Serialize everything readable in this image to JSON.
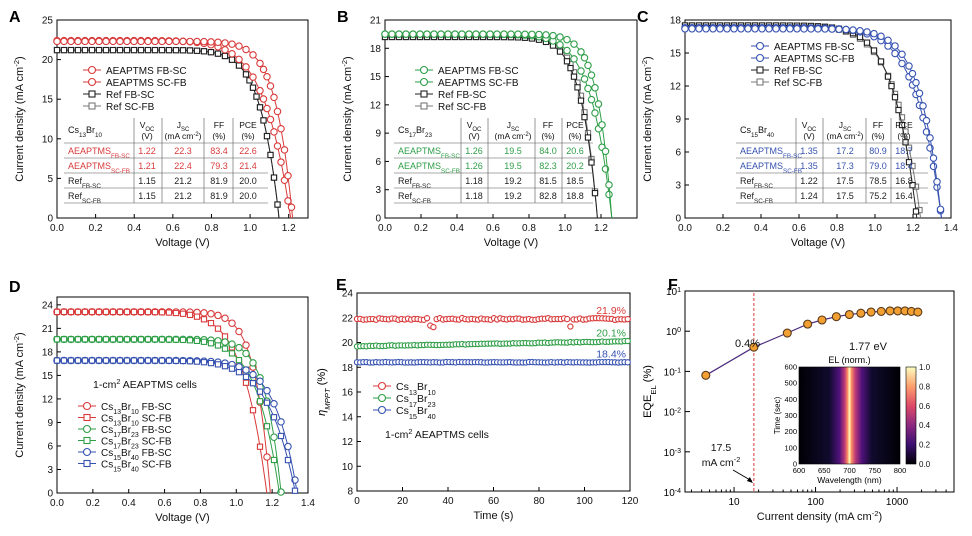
{
  "colors": {
    "red": "#d93a3a",
    "green": "#2e9e47",
    "blue": "#3652b0",
    "black": "#222222",
    "gray": "#7a7a7a",
    "orange": "#f3a033",
    "purple": "#4b2c7e"
  },
  "chart_data": [
    {
      "panel": "A",
      "type": "line",
      "xlabel": "Voltage (V)",
      "ylabel": "Current density (mA cm-2)",
      "xlim": [
        0,
        1.3
      ],
      "ylim": [
        0,
        25
      ],
      "xticks": [
        "0.0",
        "0.2",
        "0.4",
        "0.6",
        "0.8",
        "1.0",
        "1.2"
      ],
      "yticks": [
        "0",
        "5",
        "10",
        "15",
        "20",
        "25"
      ],
      "series": [
        {
          "name": "AEAPTMS FB-SC",
          "voc": 1.22,
          "jsc": 22.3,
          "ff": 83.4,
          "pce": 22.6
        },
        {
          "name": "AEAPTMS SC-FB",
          "voc": 1.21,
          "jsc": 22.4,
          "ff": 79.3,
          "pce": 21.4
        },
        {
          "name": "Ref FB-SC",
          "voc": 1.15,
          "jsc": 21.2,
          "ff": 81.9,
          "pce": 20.0
        },
        {
          "name": "Ref SC-FB",
          "voc": 1.15,
          "jsc": 21.2,
          "ff": 81.9,
          "pce": 20.0
        }
      ],
      "table": {
        "composition": "Cs13Br10",
        "headers": [
          "VOC (V)",
          "JSC (mA cm-2)",
          "FF (%)",
          "PCE (%)"
        ],
        "rows": [
          [
            "AEAPTMS FB-SC",
            "1.22",
            "22.3",
            "83.4",
            "22.6"
          ],
          [
            "AEAPTMS SC-FB",
            "1.21",
            "22.4",
            "79.3",
            "21.4"
          ],
          [
            "Ref FB-SC",
            "1.15",
            "21.2",
            "81.9",
            "20.0"
          ],
          [
            "Ref SC-FB",
            "1.15",
            "21.2",
            "81.9",
            "20.0"
          ]
        ]
      }
    },
    {
      "panel": "B",
      "type": "line",
      "xlabel": "Voltage (V)",
      "ylabel": "Current density (mA cm-2)",
      "xlim": [
        0,
        1.4
      ],
      "ylim": [
        0,
        21
      ],
      "xticks": [
        "0.0",
        "0.2",
        "0.4",
        "0.6",
        "0.8",
        "1.0",
        "1.2"
      ],
      "yticks": [
        "0",
        "3",
        "6",
        "9",
        "12",
        "15",
        "18",
        "21"
      ],
      "series": [
        {
          "name": "AEAPTMS FB-SC",
          "voc": 1.26,
          "jsc": 19.5,
          "ff": 84.0,
          "pce": 20.6
        },
        {
          "name": "AEAPTMS SC-FB",
          "voc": 1.26,
          "jsc": 19.5,
          "ff": 82.3,
          "pce": 20.2
        },
        {
          "name": "Ref FB-SC",
          "voc": 1.18,
          "jsc": 19.2,
          "ff": 81.5,
          "pce": 18.5
        },
        {
          "name": "Ref SC-FB",
          "voc": 1.18,
          "jsc": 19.2,
          "ff": 82.8,
          "pce": 18.8
        }
      ],
      "table": {
        "composition": "Cs17Br23",
        "headers": [
          "VOC (V)",
          "JSC (mA cm-2)",
          "FF (%)",
          "PCE (%)"
        ],
        "rows": [
          [
            "AEAPTMS FB-SC",
            "1.26",
            "19.5",
            "84.0",
            "20.6"
          ],
          [
            "AEAPTMS SC-FB",
            "1.26",
            "19.5",
            "82.3",
            "20.2"
          ],
          [
            "Ref FB-SC",
            "1.18",
            "19.2",
            "81.5",
            "18.5"
          ],
          [
            "Ref SC-FB",
            "1.18",
            "19.2",
            "82.8",
            "18.8"
          ]
        ]
      }
    },
    {
      "panel": "C",
      "type": "line",
      "xlabel": "Voltage (V)",
      "ylabel": "Current density (mA cm-2)",
      "xlim": [
        0,
        1.4
      ],
      "ylim": [
        0,
        18
      ],
      "xticks": [
        "0.0",
        "0.2",
        "0.4",
        "0.6",
        "0.8",
        "1.0",
        "1.2",
        "1.4"
      ],
      "yticks": [
        "0",
        "3",
        "6",
        "9",
        "12",
        "15",
        "18"
      ],
      "series": [
        {
          "name": "AEAPTMS FB-SC",
          "voc": 1.35,
          "jsc": 17.2,
          "ff": 80.9,
          "pce": 18.7
        },
        {
          "name": "AEAPTMS SC-FB",
          "voc": 1.35,
          "jsc": 17.3,
          "ff": 79.0,
          "pce": 18.4
        },
        {
          "name": "Ref FB-SC",
          "voc": 1.22,
          "jsc": 17.5,
          "ff": 78.5,
          "pce": 16.8
        },
        {
          "name": "Ref SC-FB",
          "voc": 1.24,
          "jsc": 17.5,
          "ff": 75.2,
          "pce": 16.4
        }
      ],
      "table": {
        "composition": "Cs15Br40",
        "headers": [
          "VOC (V)",
          "JSC (mA cm-2)",
          "FF (%)",
          "PCE (%)"
        ],
        "rows": [
          [
            "AEAPTMS FB-SC",
            "1.35",
            "17.2",
            "80.9",
            "18.7"
          ],
          [
            "AEAPTMS SC-FB",
            "1.35",
            "17.3",
            "79.0",
            "18.4"
          ],
          [
            "Ref FB-SC",
            "1.22",
            "17.5",
            "78.5",
            "16.8"
          ],
          [
            "Ref SC-FB",
            "1.24",
            "17.5",
            "75.2",
            "16.4"
          ]
        ]
      }
    },
    {
      "panel": "D",
      "type": "line",
      "xlabel": "Voltage (V)",
      "ylabel": "Current density (mA cm-2)",
      "xlim": [
        0,
        1.4
      ],
      "ylim": [
        0,
        25
      ],
      "xticks": [
        "0.0",
        "0.2",
        "0.4",
        "0.6",
        "0.8",
        "1.0",
        "1.2",
        "1.4"
      ],
      "yticks": [
        "0",
        "3",
        "6",
        "9",
        "12",
        "15",
        "18",
        "21",
        "24"
      ],
      "annotation": "1-cm2 AEAPTMS cells",
      "series": [
        {
          "name": "Cs13Br10 FB-SC",
          "voc": 1.19,
          "jsc": 23.1
        },
        {
          "name": "Cs13Br10 SC-FB",
          "voc": 1.17,
          "jsc": 23.1
        },
        {
          "name": "Cs17Br23 FB-SC",
          "voc": 1.25,
          "jsc": 19.6
        },
        {
          "name": "Cs17Br23 SC-FB",
          "voc": 1.24,
          "jsc": 19.6
        },
        {
          "name": "Cs15Br40 FB-SC",
          "voc": 1.34,
          "jsc": 16.9
        },
        {
          "name": "Cs15Br40 SC-FB",
          "voc": 1.33,
          "jsc": 16.9
        }
      ]
    },
    {
      "panel": "E",
      "type": "scatter",
      "xlabel": "Time (s)",
      "ylabel": "ηMPPT (%)",
      "xlim": [
        0,
        120
      ],
      "ylim": [
        8,
        24
      ],
      "xticks": [
        "0",
        "20",
        "40",
        "60",
        "80",
        "100",
        "120"
      ],
      "yticks": [
        "8",
        "10",
        "12",
        "14",
        "16",
        "18",
        "20",
        "22",
        "24"
      ],
      "annotation": "1-cm2 AEAPTMS cells",
      "series": [
        {
          "name": "Cs13Br10",
          "start": 21.9,
          "end": 21.9,
          "label": "21.9%"
        },
        {
          "name": "Cs17Br23",
          "start": 19.7,
          "end": 20.1,
          "label": "20.1%"
        },
        {
          "name": "Cs15Br40",
          "start": 18.4,
          "end": 18.4,
          "label": "18.4%"
        }
      ]
    },
    {
      "panel": "F",
      "type": "scatter",
      "xlabel": "Current density (mA cm-2)",
      "ylabel": "EQEEL (%)",
      "xscale": "log",
      "yscale": "log",
      "xlim": [
        2.5,
        5000
      ],
      "ylim": [
        0.0001,
        10
      ],
      "xticks": [
        "10",
        "100",
        "1000"
      ],
      "yticks": [
        "10-4",
        "10-3",
        "10-2",
        "10-1",
        "100",
        "101"
      ],
      "x": [
        4.5,
        17.5,
        45,
        80,
        120,
        180,
        260,
        360,
        480,
        640,
        820,
        1020,
        1250,
        1500,
        1800
      ],
      "y": [
        0.08,
        0.4,
        0.9,
        1.5,
        1.9,
        2.3,
        2.6,
        2.8,
        3.0,
        3.1,
        3.2,
        3.2,
        3.2,
        3.1,
        3.0
      ],
      "annotations": [
        "0.4%",
        "1.77 eV",
        "17.5 mA cm-2"
      ],
      "inset": {
        "type": "heatmap",
        "title": "EL (norm.)",
        "xlabel": "Wavelength (nm)",
        "ylabel": "Time (sec)",
        "xlim": [
          600,
          800
        ],
        "ylim": [
          0,
          600
        ],
        "xticks": [
          "600",
          "650",
          "700",
          "750",
          "800"
        ],
        "yticks": [
          "0",
          "100",
          "200",
          "300",
          "400",
          "500",
          "600"
        ],
        "peak_nm": 700,
        "colorbar_ticks": [
          "0.0",
          "0.2",
          "0.4",
          "0.6",
          "0.8",
          "1.0"
        ]
      }
    }
  ]
}
